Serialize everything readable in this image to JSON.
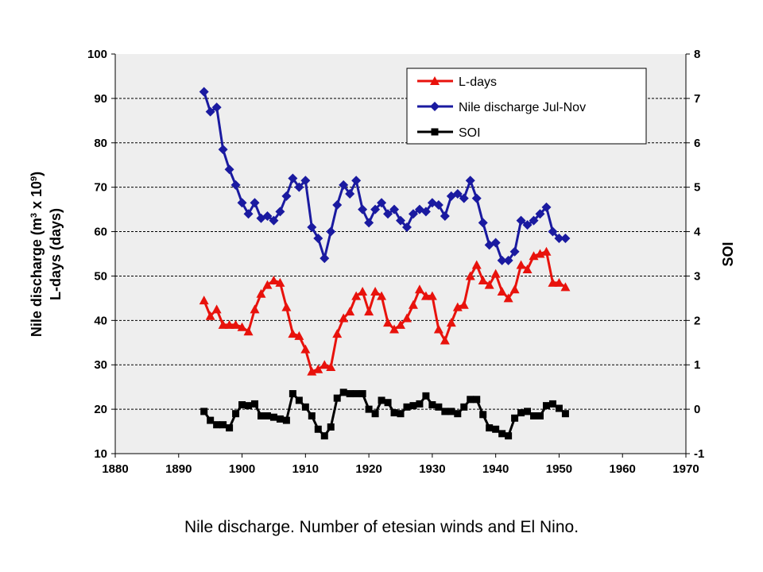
{
  "caption": "Nile discharge. Number of etesian winds and El Nino.",
  "chart_data": {
    "type": "line",
    "xlim": [
      1880,
      1970
    ],
    "x_ticks": [
      1880,
      1890,
      1900,
      1910,
      1920,
      1930,
      1940,
      1950,
      1960,
      1970
    ],
    "left_axis": {
      "label_line1": "Nile discharge (m",
      "label_sup1": "3",
      "label_mid": " x 10",
      "label_sup2": "9",
      "label_end": ")",
      "label_line2": "L-days (days)",
      "ylim": [
        10,
        100
      ],
      "ticks": [
        10,
        20,
        30,
        40,
        50,
        60,
        70,
        80,
        90,
        100
      ]
    },
    "right_axis": {
      "label": "SOI",
      "ylim": [
        -1,
        8
      ],
      "ticks": [
        -1,
        0,
        1,
        2,
        3,
        4,
        5,
        6,
        7,
        8
      ]
    },
    "grid": true,
    "legend_position": "top-right",
    "series": [
      {
        "name": "L-days",
        "axis": "left",
        "color": "#e8120c",
        "marker": "triangle",
        "x": [
          1894,
          1895,
          1896,
          1897,
          1898,
          1899,
          1900,
          1901,
          1902,
          1903,
          1904,
          1905,
          1906,
          1907,
          1908,
          1909,
          1910,
          1911,
          1912,
          1913,
          1914,
          1915,
          1916,
          1917,
          1918,
          1919,
          1920,
          1921,
          1922,
          1923,
          1924,
          1925,
          1926,
          1927,
          1928,
          1929,
          1930,
          1931,
          1932,
          1933,
          1934,
          1935,
          1936,
          1937,
          1938,
          1939,
          1940,
          1941,
          1942,
          1943,
          1944,
          1945,
          1946,
          1947,
          1948,
          1949,
          1950,
          1951
        ],
        "values": [
          44.5,
          41,
          42.5,
          39,
          39,
          39,
          38.5,
          37.5,
          42.5,
          46,
          48,
          49,
          48.5,
          43,
          37,
          36.5,
          33.5,
          28.5,
          29,
          30,
          29.5,
          37,
          40.5,
          42,
          45.5,
          46.5,
          42,
          46.5,
          45.5,
          39.5,
          38,
          39,
          40.5,
          43.5,
          47,
          45.5,
          45.5,
          38,
          35.5,
          39.5,
          43,
          43.5,
          50,
          52.5,
          49,
          48,
          50.5,
          46.5,
          45,
          47,
          52.5,
          51.5,
          54.5,
          55,
          55.5,
          48.5,
          48.5,
          47.5
        ]
      },
      {
        "name": "Nile discharge Jul-Nov",
        "axis": "left",
        "color": "#1a1aa0",
        "marker": "diamond",
        "x": [
          1894,
          1895,
          1896,
          1897,
          1898,
          1899,
          1900,
          1901,
          1902,
          1903,
          1904,
          1905,
          1906,
          1907,
          1908,
          1909,
          1910,
          1911,
          1912,
          1913,
          1914,
          1915,
          1916,
          1917,
          1918,
          1919,
          1920,
          1921,
          1922,
          1923,
          1924,
          1925,
          1926,
          1927,
          1928,
          1929,
          1930,
          1931,
          1932,
          1933,
          1934,
          1935,
          1936,
          1937,
          1938,
          1939,
          1940,
          1941,
          1942,
          1943,
          1944,
          1945,
          1946,
          1947,
          1948,
          1949,
          1950,
          1951
        ],
        "values": [
          91.5,
          87,
          88,
          78.5,
          74,
          70.5,
          66.5,
          64,
          66.5,
          63,
          63.5,
          62.5,
          64.5,
          68,
          72,
          70,
          71.5,
          61,
          58.5,
          54,
          60,
          66,
          70.5,
          68.5,
          71.5,
          65,
          62,
          65,
          66.5,
          64,
          65,
          62.5,
          61,
          64,
          65,
          64.5,
          66.5,
          66,
          63.5,
          68,
          68.5,
          67.5,
          71.5,
          67.5,
          62,
          57,
          57.5,
          53.5,
          53.5,
          55.5,
          62.5,
          61.5,
          62.5,
          64,
          65.5,
          60,
          58.5,
          58.5
        ]
      },
      {
        "name": "SOI",
        "axis": "right",
        "color": "#000000",
        "marker": "square",
        "x": [
          1894,
          1895,
          1896,
          1897,
          1898,
          1899,
          1900,
          1901,
          1902,
          1903,
          1904,
          1905,
          1906,
          1907,
          1908,
          1909,
          1910,
          1911,
          1912,
          1913,
          1914,
          1915,
          1916,
          1917,
          1918,
          1919,
          1920,
          1921,
          1922,
          1923,
          1924,
          1925,
          1926,
          1927,
          1928,
          1929,
          1930,
          1931,
          1932,
          1933,
          1934,
          1935,
          1936,
          1937,
          1938,
          1939,
          1940,
          1941,
          1942,
          1943,
          1944,
          1945,
          1946,
          1947,
          1948,
          1949,
          1950,
          1951
        ],
        "values": [
          -0.05,
          -0.25,
          -0.35,
          -0.35,
          -0.42,
          -0.1,
          0.1,
          0.08,
          0.12,
          -0.15,
          -0.15,
          -0.18,
          -0.22,
          -0.25,
          0.35,
          0.2,
          0.05,
          -0.15,
          -0.45,
          -0.6,
          -0.4,
          0.25,
          0.38,
          0.35,
          0.35,
          0.35,
          0,
          -0.1,
          0.2,
          0.15,
          -0.08,
          -0.1,
          0.05,
          0.08,
          0.12,
          0.3,
          0.1,
          0.05,
          -0.05,
          -0.05,
          -0.1,
          0.05,
          0.22,
          0.22,
          -0.12,
          -0.42,
          -0.45,
          -0.55,
          -0.6,
          -0.2,
          -0.08,
          -0.05,
          -0.15,
          -0.15,
          0.08,
          0.12,
          0.02,
          -0.1
        ]
      }
    ]
  }
}
